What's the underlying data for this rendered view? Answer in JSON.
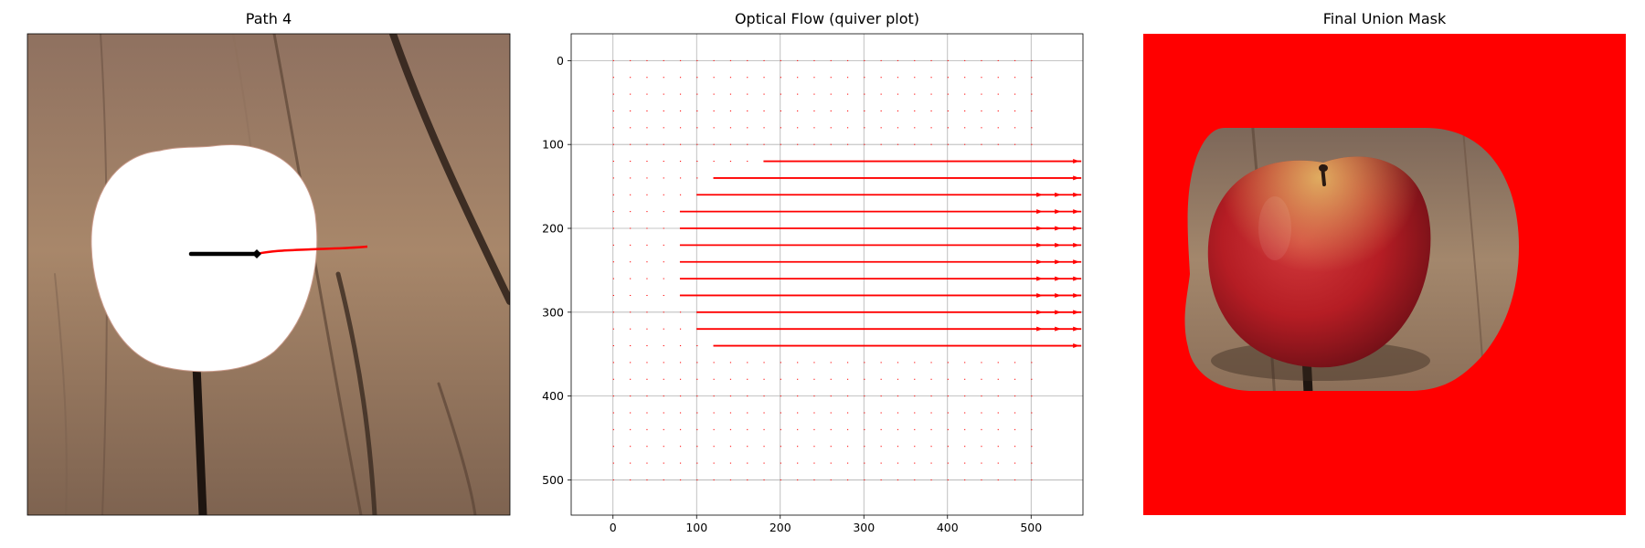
{
  "panels": {
    "left": {
      "title": "Path 4"
    },
    "middle": {
      "title": "Optical Flow (quiver plot)"
    },
    "right": {
      "title": "Final Union Mask"
    }
  },
  "colors": {
    "arrow": "#ff0000",
    "mask": "#ff0000",
    "grid": "#b0b0b0",
    "path": "#000000",
    "wood_light": "#a8876a",
    "wood_dark": "#6d5442",
    "apple_red": "#b51d24"
  },
  "chart_data": [
    {
      "type": "image",
      "title": "Path 4",
      "description_items": [
        "wood-background",
        "white-apple-mask",
        "black-drag-path",
        "red-trajectory"
      ]
    },
    {
      "type": "quiver",
      "title": "Optical Flow (quiver plot)",
      "xlabel": "",
      "ylabel": "",
      "xlim": [
        -50,
        562
      ],
      "ylim": [
        542,
        -32
      ],
      "xticks": [
        0,
        100,
        200,
        300,
        400,
        500
      ],
      "yticks": [
        0,
        100,
        200,
        300,
        400,
        500
      ],
      "grid": true,
      "grid_spacing": 20,
      "grid_x_range": [
        0,
        500
      ],
      "grid_y_range": [
        0,
        500
      ],
      "arrows": [
        {
          "x0": 180,
          "y": 120,
          "x1": 560
        },
        {
          "x0": 120,
          "y": 140,
          "x1": 560
        },
        {
          "x0": 100,
          "y": 160,
          "x1": 560
        },
        {
          "x0": 80,
          "y": 180,
          "x1": 560
        },
        {
          "x0": 80,
          "y": 200,
          "x1": 560
        },
        {
          "x0": 80,
          "y": 220,
          "x1": 560
        },
        {
          "x0": 80,
          "y": 240,
          "x1": 560
        },
        {
          "x0": 80,
          "y": 260,
          "x1": 560
        },
        {
          "x0": 80,
          "y": 280,
          "x1": 560
        },
        {
          "x0": 100,
          "y": 300,
          "x1": 560
        },
        {
          "x0": 100,
          "y": 320,
          "x1": 560
        },
        {
          "x0": 120,
          "y": 340,
          "x1": 560
        }
      ]
    },
    {
      "type": "image",
      "title": "Final Union Mask",
      "description_items": [
        "red-mask-outside",
        "apple-on-wood-region"
      ]
    }
  ]
}
